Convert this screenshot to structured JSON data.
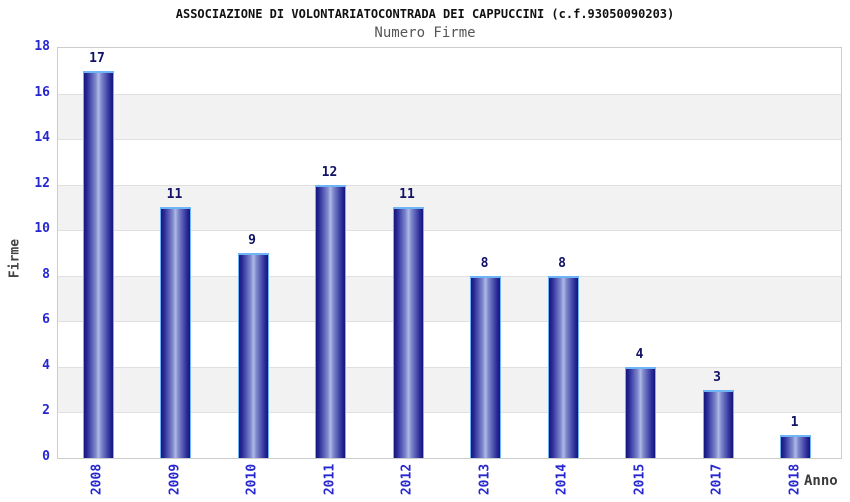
{
  "header": {
    "title": "ASSOCIAZIONE DI VOLONTARIATOCONTRADA DEI CAPPUCCINI (c.f.93050090203)",
    "subtitle": "Numero Firme"
  },
  "chart_data": {
    "type": "bar",
    "title": "ASSOCIAZIONE DI VOLONTARIATOCONTRADA DEI CAPPUCCINI (c.f.93050090203)",
    "subtitle": "Numero Firme",
    "categories": [
      "2008",
      "2009",
      "2010",
      "2011",
      "2012",
      "2013",
      "2014",
      "2015",
      "2017",
      "2018"
    ],
    "values": [
      17,
      11,
      9,
      12,
      11,
      8,
      8,
      4,
      3,
      1
    ],
    "xlabel": "Anno",
    "ylabel": "Firme",
    "ylim": [
      0,
      18
    ],
    "ytick_step": 2,
    "ytick_labels": [
      "0",
      "2",
      "4",
      "6",
      "8",
      "10",
      "12",
      "14",
      "16",
      "18"
    ],
    "grid": true,
    "legend": "none",
    "colors": {
      "band_a": "#ffffff",
      "band_b": "#f2f2f2",
      "gridline": "#e0e0e0",
      "plot_border": "#cccccc",
      "tick_label": "#2727cf",
      "value_label": "#111166",
      "bar_border": "#6db5f5",
      "bar_gradient_stops": [
        [
          "#14147d",
          0
        ],
        [
          "#2e2e9b",
          12
        ],
        [
          "#7e88cc",
          40
        ],
        [
          "#b0b9e6",
          50
        ],
        [
          "#7e88cc",
          60
        ],
        [
          "#2e2e9b",
          88
        ],
        [
          "#14147d",
          100
        ]
      ]
    }
  }
}
